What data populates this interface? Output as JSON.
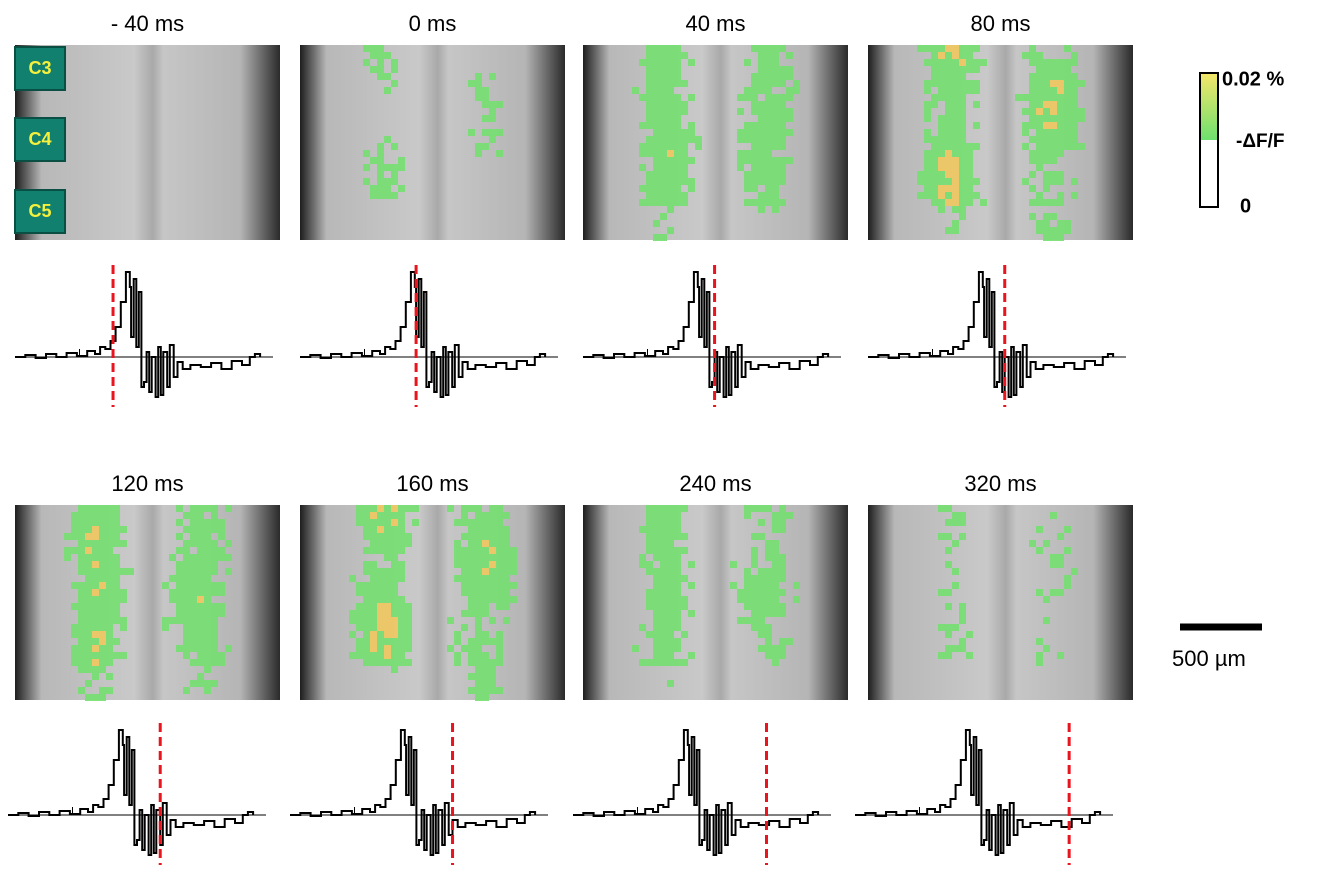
{
  "panels": [
    {
      "label": "- 40 ms"
    },
    {
      "label": "0 ms"
    },
    {
      "label": "40 ms"
    },
    {
      "label": "80 ms"
    },
    {
      "label": "120 ms"
    },
    {
      "label": "160 ms"
    },
    {
      "label": "240 ms"
    },
    {
      "label": "320 ms"
    }
  ],
  "segments": [
    "C3",
    "C4",
    "C5"
  ],
  "colorbar": {
    "max": "0.02 %",
    "label": "-ΔF/F",
    "min": "0"
  },
  "scale_bar": "500 µm"
}
